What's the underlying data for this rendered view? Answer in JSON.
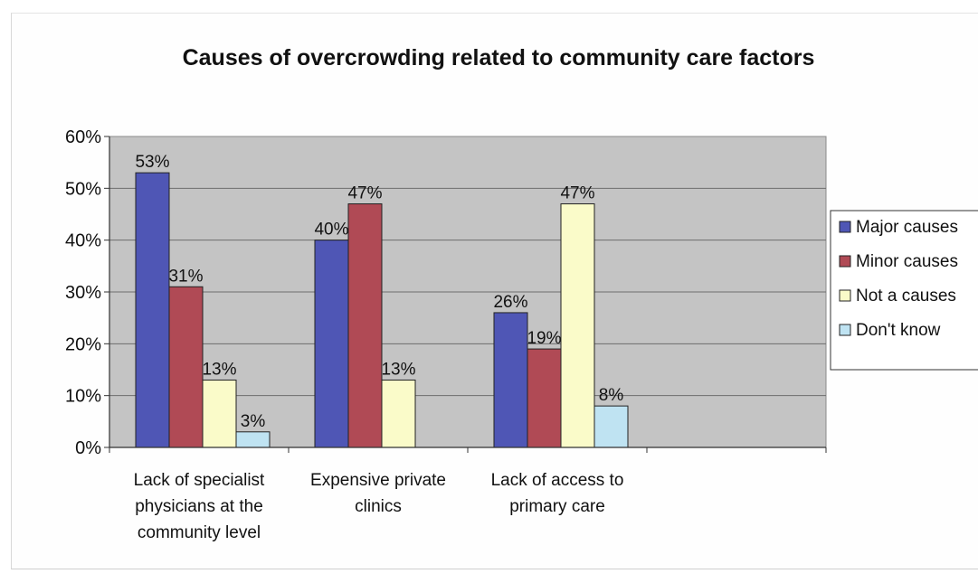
{
  "chart_data": {
    "type": "bar",
    "title": "Causes of overcrowding related to community care factors",
    "xlabel": "",
    "ylabel": "",
    "ylim": [
      0,
      60
    ],
    "yticks": [
      "0%",
      "10%",
      "20%",
      "30%",
      "40%",
      "50%",
      "60%"
    ],
    "grid": true,
    "legend_position": "right",
    "categories": [
      [
        "Lack of specialist",
        "physicians at the",
        "community level"
      ],
      [
        "Expensive private",
        "clinics"
      ],
      [
        "Lack of access to",
        "primary care"
      ],
      [
        ""
      ]
    ],
    "series": [
      {
        "name": "Major causes",
        "color": "#4f56b5",
        "values": [
          53,
          40,
          26,
          null
        ],
        "labels": [
          "53%",
          "40%",
          "26%",
          ""
        ]
      },
      {
        "name": "Minor causes",
        "color": "#b04a55",
        "values": [
          31,
          47,
          19,
          null
        ],
        "labels": [
          "31%",
          "47%",
          "19%",
          ""
        ]
      },
      {
        "name": "Not a causes",
        "color": "#fafbc9",
        "values": [
          13,
          13,
          47,
          null
        ],
        "labels": [
          "13%",
          "13%",
          "47%",
          ""
        ]
      },
      {
        "name": "Don't know",
        "color": "#bfe3f2",
        "values": [
          3,
          null,
          8,
          null
        ],
        "labels": [
          "3%",
          "",
          "8%",
          ""
        ]
      }
    ]
  }
}
